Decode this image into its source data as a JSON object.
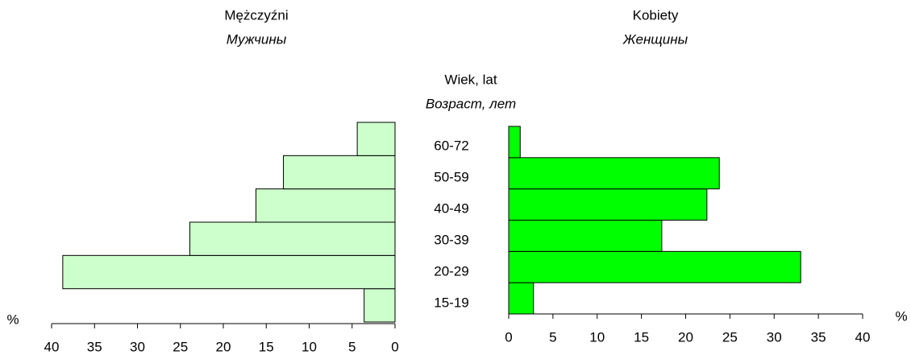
{
  "chart_data": [
    {
      "type": "bar",
      "orientation": "horizontal",
      "reversed": true,
      "title": "Mężczyźni",
      "subtitle": "Мужчины",
      "category_label": [
        "Wiek, lat",
        "Возраст, лет"
      ],
      "categories": [
        "15-19",
        "20-29",
        "30-39",
        "40-49",
        "50-59",
        "60-72"
      ],
      "values": [
        3.6,
        38.7,
        23.9,
        16.2,
        13.0,
        4.4
      ],
      "color": "#ccffcc",
      "xlabel": "%",
      "xlim": [
        0,
        40
      ],
      "xticks": [
        0,
        5,
        10,
        15,
        20,
        25,
        30,
        35,
        40
      ]
    },
    {
      "type": "bar",
      "orientation": "horizontal",
      "reversed": false,
      "title": "Kobiety",
      "subtitle": "Женщины",
      "values": [
        2.8,
        33.0,
        17.3,
        22.4,
        23.8,
        1.3
      ],
      "color": "#00ff00",
      "xlabel": "%",
      "xlim": [
        0,
        40
      ],
      "xticks": [
        0,
        5,
        10,
        15,
        20,
        25,
        30,
        35,
        40
      ]
    }
  ]
}
